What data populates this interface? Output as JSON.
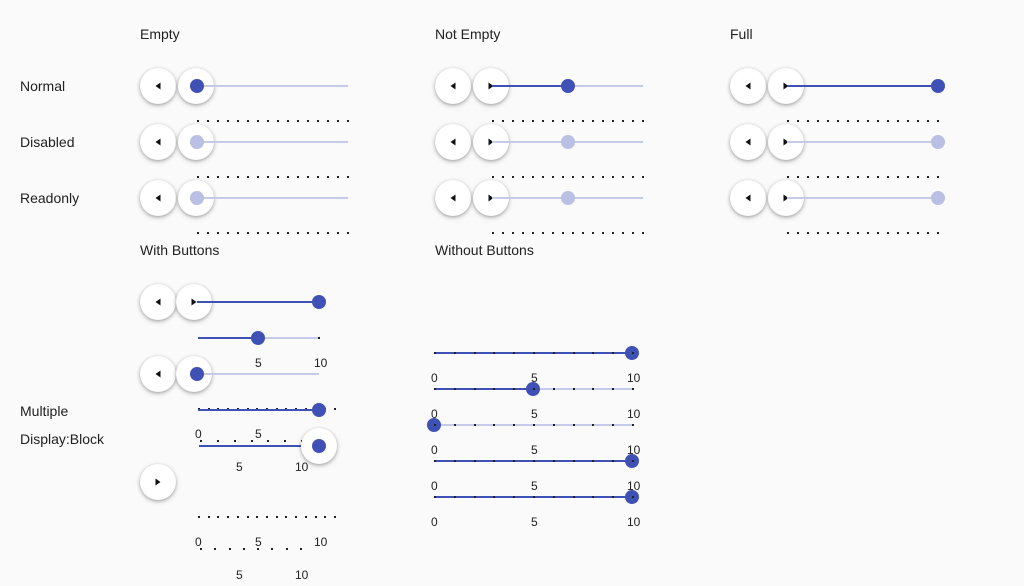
{
  "columns": {
    "empty": "Empty",
    "not_empty": "Not Empty",
    "full": "Full",
    "with_buttons": "With Buttons",
    "without_buttons": "Without Buttons"
  },
  "rows": {
    "normal": "Normal",
    "disabled": "Disabled",
    "readonly": "Readonly",
    "multiple": "Multiple",
    "display_block": "Display:Block"
  },
  "slider_values": {
    "normal": {
      "empty": 0,
      "not_empty": 0.5,
      "full": 1
    },
    "disabled": {
      "empty": 0,
      "not_empty": 0.5,
      "full": 1
    },
    "readonly": {
      "empty": 0,
      "not_empty": 0.5,
      "full": 1
    }
  },
  "scale": {
    "min": "0",
    "mid": "5",
    "max": "10"
  },
  "colors": {
    "accent": "#3f51b5",
    "track": "#c5cae9",
    "disabled_thumb": "#b9c0e3",
    "background": "#fafafa"
  },
  "icons": {
    "decrement": "triangle-left",
    "increment": "triangle-right"
  }
}
